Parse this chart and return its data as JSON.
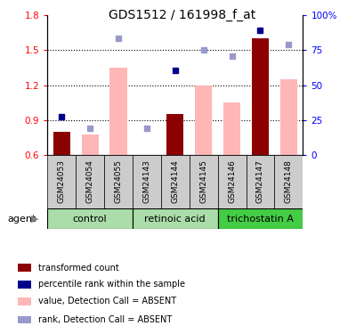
{
  "title": "GDS1512 / 161998_f_at",
  "samples": [
    "GSM24053",
    "GSM24054",
    "GSM24055",
    "GSM24143",
    "GSM24144",
    "GSM24145",
    "GSM24146",
    "GSM24147",
    "GSM24148"
  ],
  "ylim_left": [
    0.6,
    1.8
  ],
  "ylim_right": [
    0,
    100
  ],
  "yticks_left": [
    0.6,
    0.9,
    1.2,
    1.5,
    1.8
  ],
  "yticks_right": [
    0,
    25,
    50,
    75,
    100
  ],
  "ytick_labels_right": [
    "0",
    "25",
    "50",
    "75",
    "100%"
  ],
  "transformed_count": [
    0.8,
    null,
    null,
    null,
    0.95,
    null,
    null,
    1.6,
    null
  ],
  "absent_value": [
    null,
    0.78,
    1.35,
    null,
    null,
    1.2,
    1.05,
    null,
    1.25
  ],
  "percentile_rank": [
    0.93,
    null,
    null,
    null,
    1.33,
    null,
    null,
    1.67,
    null
  ],
  "absent_rank": [
    null,
    0.83,
    1.6,
    0.83,
    null,
    1.5,
    1.45,
    null,
    1.55
  ],
  "bar_color_present": "#8B0000",
  "bar_color_absent": "#FFB6B6",
  "dot_color_present": "#00008B",
  "dot_color_absent": "#9999CC",
  "legend_items": [
    {
      "label": "transformed count",
      "color": "#8B0000"
    },
    {
      "label": "percentile rank within the sample",
      "color": "#00008B"
    },
    {
      "label": "value, Detection Call = ABSENT",
      "color": "#FFB6B6"
    },
    {
      "label": "rank, Detection Call = ABSENT",
      "color": "#9999CC"
    }
  ],
  "group_configs": [
    {
      "name": "control",
      "start": 0,
      "end": 3,
      "color": "#aaddaa"
    },
    {
      "name": "retinoic acid",
      "start": 3,
      "end": 6,
      "color": "#aaddaa"
    },
    {
      "name": "trichostatin A",
      "start": 6,
      "end": 9,
      "color": "#44cc44"
    }
  ],
  "sample_bg_color": "#cccccc",
  "agent_label": "agent"
}
